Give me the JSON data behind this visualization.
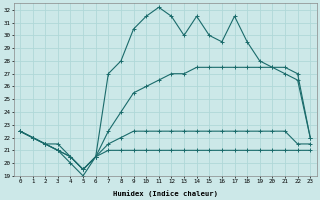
{
  "xlabel": "Humidex (Indice chaleur)",
  "xlim": [
    -0.5,
    23.5
  ],
  "ylim": [
    19,
    32.5
  ],
  "yticks": [
    19,
    20,
    21,
    22,
    23,
    24,
    25,
    26,
    27,
    28,
    29,
    30,
    31,
    32
  ],
  "xticks": [
    0,
    1,
    2,
    3,
    4,
    5,
    6,
    7,
    8,
    9,
    10,
    11,
    12,
    13,
    14,
    15,
    16,
    17,
    18,
    19,
    20,
    21,
    22,
    23
  ],
  "bg_color": "#cce8e8",
  "grid_color": "#b0d8d8",
  "line_color": "#1a6b6b",
  "line1_y": [
    22.5,
    22.0,
    21.5,
    21.0,
    20.5,
    19.5,
    20.5,
    27.0,
    28.0,
    30.5,
    31.5,
    32.2,
    31.5,
    30.0,
    31.5,
    30.0,
    29.5,
    31.5,
    29.5,
    28.0,
    27.5,
    27.0,
    26.5,
    22.0
  ],
  "line2_y": [
    22.5,
    22.0,
    21.5,
    21.5,
    20.5,
    19.5,
    20.5,
    21.5,
    22.0,
    22.5,
    22.5,
    22.5,
    22.5,
    22.5,
    22.5,
    22.5,
    22.5,
    22.5,
    22.5,
    22.5,
    22.5,
    22.5,
    21.5,
    21.5
  ],
  "line3_y": [
    22.5,
    22.0,
    21.5,
    21.0,
    20.5,
    19.5,
    20.5,
    22.5,
    24.0,
    25.5,
    26.0,
    26.5,
    27.0,
    27.0,
    27.5,
    27.5,
    27.5,
    27.5,
    27.5,
    27.5,
    27.5,
    27.5,
    27.0,
    22.0
  ],
  "line4_y": [
    22.5,
    22.0,
    21.5,
    21.0,
    20.0,
    19.0,
    20.5,
    21.0,
    21.0,
    21.0,
    21.0,
    21.0,
    21.0,
    21.0,
    21.0,
    21.0,
    21.0,
    21.0,
    21.0,
    21.0,
    21.0,
    21.0,
    21.0,
    21.0
  ]
}
